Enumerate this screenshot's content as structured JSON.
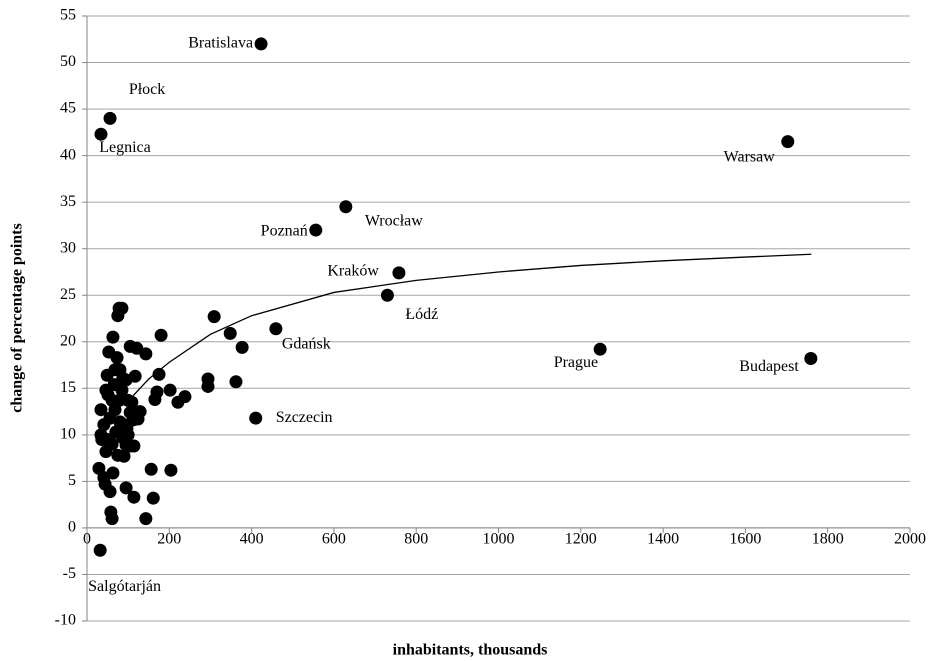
{
  "chart_data": {
    "type": "scatter",
    "xlabel": "inhabitants, thousands",
    "ylabel": "change of percentage points",
    "xlim": [
      0,
      2000
    ],
    "ylim": [
      -10,
      55
    ],
    "xticks": [
      0,
      200,
      400,
      600,
      800,
      1000,
      1200,
      1400,
      1600,
      1800,
      2000
    ],
    "yticks": [
      -10,
      -5,
      0,
      5,
      10,
      15,
      20,
      25,
      30,
      35,
      40,
      45,
      50,
      55
    ],
    "grid": true,
    "color": "#000000",
    "series": [
      {
        "x": [
          423,
          56,
          34,
          1703,
          629,
          556,
          758,
          730,
          459,
          1247,
          1759,
          410,
          32,
          180,
          143,
          121,
          309,
          348,
          377,
          175,
          170,
          165,
          202,
          238,
          221,
          294,
          294,
          362,
          117,
          156,
          161,
          204,
          143,
          95,
          114,
          61,
          58,
          44,
          41,
          56,
          63,
          29,
          34,
          36,
          34,
          46,
          49,
          53,
          63,
          78,
          75,
          85,
          68,
          80,
          105,
          56,
          41,
          49,
          46,
          61,
          75,
          90,
          95,
          105,
          114,
          90,
          105,
          117,
          129,
          124,
          112,
          100,
          109,
          78,
          85,
          68,
          61,
          51,
          80,
          97,
          70,
          87,
          100,
          66,
          95,
          73,
          87
        ],
        "values": [
          52,
          44,
          42.3,
          41.5,
          34.5,
          32,
          27.4,
          25,
          21.4,
          19.2,
          18.2,
          11.8,
          -2.4,
          20.7,
          18.7,
          19.3,
          22.7,
          20.9,
          19.4,
          16.5,
          14.6,
          13.8,
          14.8,
          14.1,
          13.5,
          16,
          15.2,
          15.7,
          16.3,
          6.3,
          3.2,
          6.2,
          1,
          4.3,
          3.3,
          1,
          1.7,
          4.7,
          5.4,
          3.9,
          5.9,
          6.4,
          12.7,
          9.5,
          10,
          14.8,
          16.4,
          18.9,
          20.5,
          23.6,
          22.8,
          23.6,
          17,
          17,
          19.5,
          11.8,
          11.1,
          9.5,
          8.2,
          9,
          7.8,
          7.7,
          8.9,
          8.8,
          8.8,
          11.1,
          12.4,
          12.5,
          12.5,
          11.7,
          11.6,
          13.7,
          13.5,
          13.7,
          14.8,
          12.7,
          13.7,
          14.3,
          11.4,
          10.7,
          10.3,
          9.7,
          10,
          15.4,
          15.9,
          18.3,
          16.1
        ],
        "labels": [
          "Bratislava",
          "Płock",
          "Legnica",
          "Warsaw",
          "Wrocław",
          "Poznań",
          "Kraków",
          "Łódź",
          "Gdańsk",
          "Prague",
          "Budapest",
          "Szczecin",
          "Salgótarján",
          null,
          null,
          null,
          null,
          null,
          null,
          null,
          null,
          null,
          null,
          null,
          null,
          null,
          null,
          null,
          null,
          null,
          null,
          null,
          null,
          null,
          null,
          null,
          null,
          null,
          null,
          null,
          null,
          null,
          null,
          null,
          null,
          null,
          null,
          null,
          null,
          null,
          null,
          null,
          null,
          null,
          null,
          null,
          null,
          null,
          null,
          null,
          null,
          null,
          null,
          null,
          null,
          null,
          null,
          null,
          null,
          null,
          null,
          null,
          null,
          null,
          null,
          null,
          null,
          null,
          null,
          null,
          null,
          null,
          null,
          null,
          null
        ]
      }
    ],
    "trendline": {
      "x": [
        112,
        150,
        200,
        300,
        400,
        600,
        800,
        1000,
        1200,
        1400,
        1600,
        1760
      ],
      "values": [
        14.2,
        16,
        17.8,
        20.8,
        22.8,
        25.3,
        26.6,
        27.5,
        28.2,
        28.7,
        29.1,
        29.4
      ]
    }
  }
}
